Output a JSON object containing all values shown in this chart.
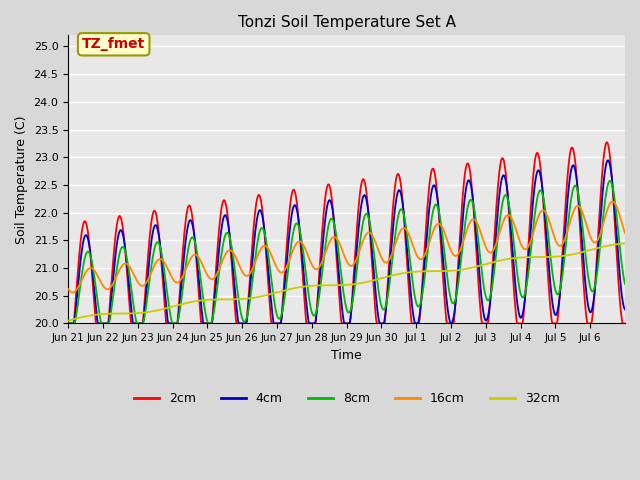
{
  "title": "Tonzi Soil Temperature Set A",
  "xlabel": "Time",
  "ylabel": "Soil Temperature (C)",
  "ylim": [
    20.0,
    25.2
  ],
  "yticks": [
    20.0,
    20.5,
    21.0,
    21.5,
    22.0,
    22.5,
    23.0,
    23.5,
    24.0,
    24.5,
    25.0
  ],
  "xtick_labels": [
    "Jun 21",
    "Jun 22",
    "Jun 23",
    "Jun 24",
    "Jun 25",
    "Jun 26",
    "Jun 27",
    "Jun 28",
    "Jun 29",
    "Jun 30",
    "Jul 1",
    "Jul 2",
    "Jul 3",
    "Jul 4",
    "Jul 5",
    "Jul 6"
  ],
  "colors": {
    "2cm": "#ff0000",
    "4cm": "#0000cc",
    "8cm": "#00bb00",
    "16cm": "#ff8800",
    "32cm": "#cccc00"
  },
  "legend_labels": [
    "2cm",
    "4cm",
    "8cm",
    "16cm",
    "32cm"
  ],
  "annotation_text": "TZ_fmet",
  "annotation_color": "#cc0000",
  "annotation_bg": "#ffffcc",
  "background_color": "#e8e8e8",
  "plot_bg": "#e8e8e8",
  "grid_color": "#ffffff",
  "n_days": 16
}
